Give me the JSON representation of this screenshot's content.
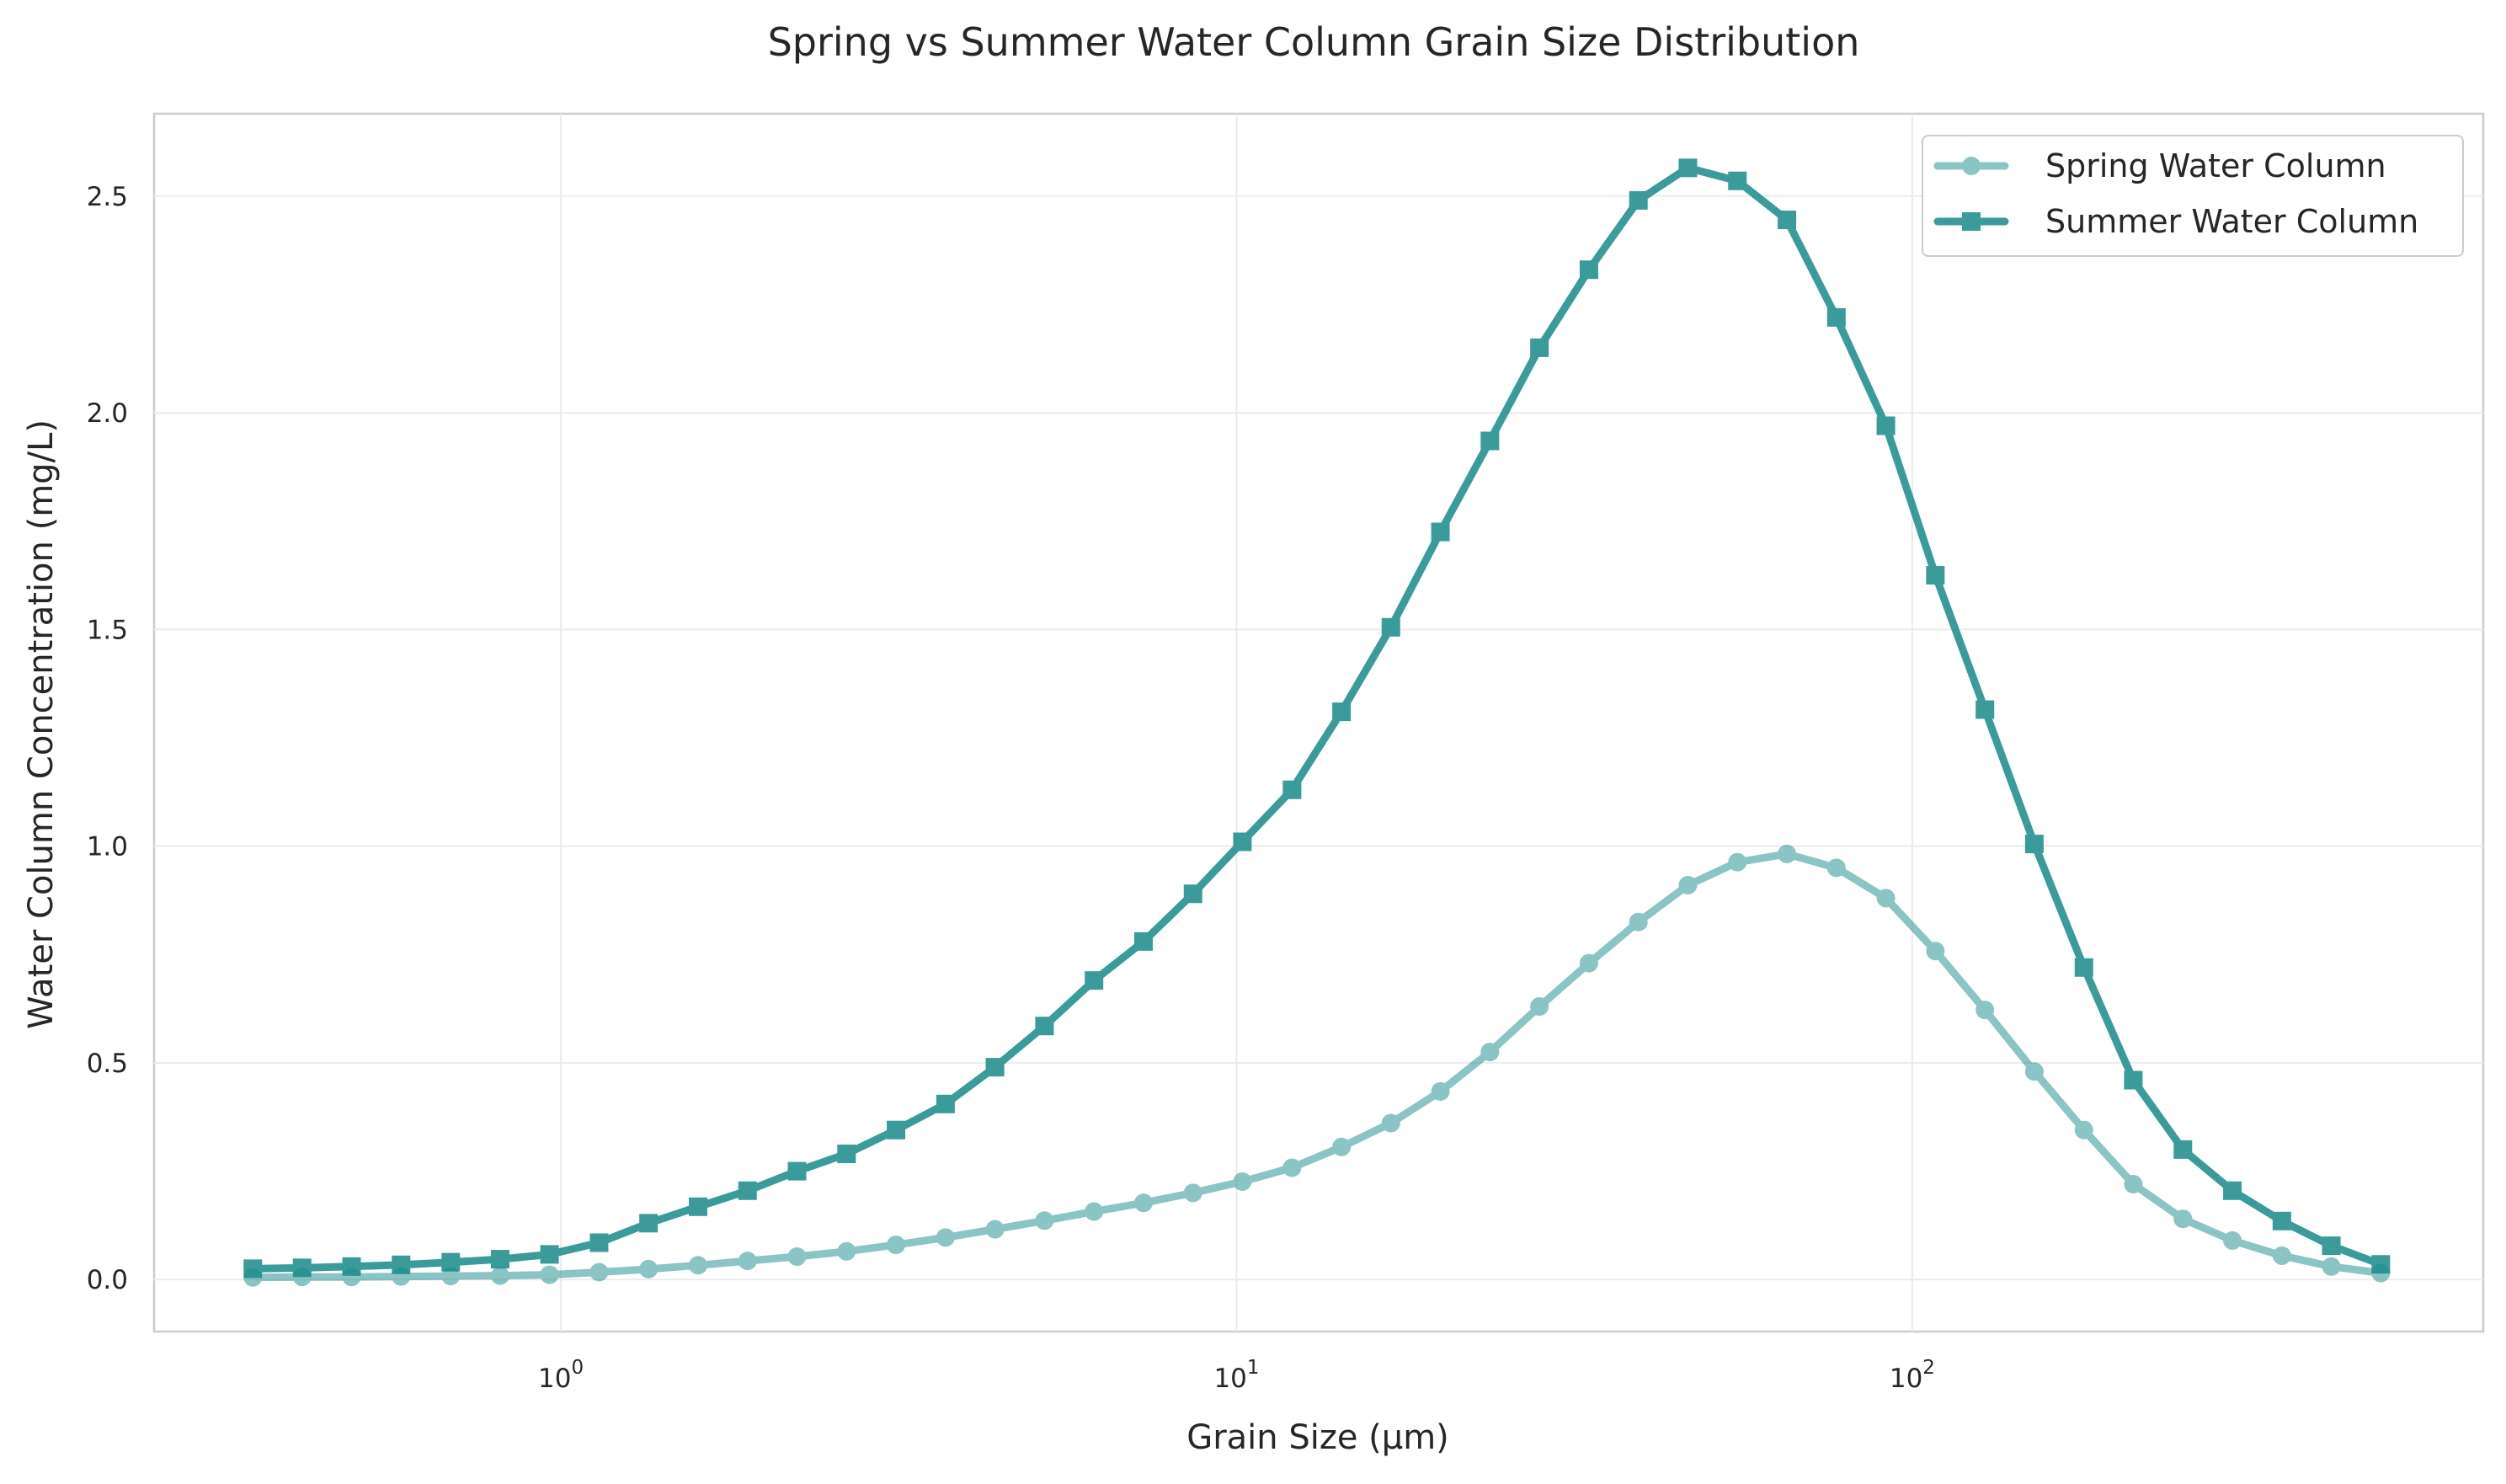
{
  "chart_data": {
    "type": "line",
    "title": "Spring vs Summer Water Column Grain Size Distribution",
    "xlabel": "Grain Size (μm)",
    "ylabel": "Water Column Concentration (mg/L)",
    "xscale": "log",
    "xlim": [
      0.25,
      700
    ],
    "ylim": [
      -0.12,
      2.69
    ],
    "x_ticks": [
      {
        "value": 1,
        "base": "10",
        "exp": "0"
      },
      {
        "value": 10,
        "base": "10",
        "exp": "1"
      },
      {
        "value": 100,
        "base": "10",
        "exp": "2"
      }
    ],
    "y_ticks": [
      {
        "value": 0.0,
        "label": "0.0"
      },
      {
        "value": 0.5,
        "label": "0.5"
      },
      {
        "value": 1.0,
        "label": "1.0"
      },
      {
        "value": 1.5,
        "label": "1.5"
      },
      {
        "value": 2.0,
        "label": "2.0"
      },
      {
        "value": 2.5,
        "label": "2.5"
      }
    ],
    "grid": true,
    "legend_position": "top-right",
    "x": [
      0.35,
      0.414,
      0.49,
      0.58,
      0.687,
      0.813,
      0.962,
      1.139,
      1.348,
      1.596,
      1.889,
      2.236,
      2.647,
      3.133,
      3.709,
      4.39,
      5.197,
      6.152,
      7.282,
      8.62,
      10.2,
      12.08,
      14.3,
      16.92,
      20.03,
      23.71,
      28.07,
      33.23,
      39.33,
      46.56,
      55.11,
      65.24,
      77.22,
      91.41,
      108.2,
      128.1,
      151.6,
      179.5,
      212.4,
      251.5,
      297.7,
      352.4,
      417.1,
      493.7
    ],
    "series": [
      {
        "name": "Spring Water Column",
        "color": "#1a8a8a",
        "opacity": 0.5,
        "marker": "circle",
        "values": [
          0.005,
          0.006,
          0.006,
          0.007,
          0.008,
          0.009,
          0.011,
          0.017,
          0.024,
          0.033,
          0.043,
          0.053,
          0.065,
          0.08,
          0.097,
          0.116,
          0.136,
          0.157,
          0.177,
          0.2,
          0.226,
          0.258,
          0.306,
          0.361,
          0.434,
          0.525,
          0.63,
          0.73,
          0.825,
          0.91,
          0.963,
          0.982,
          0.95,
          0.88,
          0.758,
          0.622,
          0.48,
          0.345,
          0.22,
          0.14,
          0.09,
          0.055,
          0.03,
          0.015
        ]
      },
      {
        "name": "Summer Water Column",
        "color": "#1a8a8a",
        "opacity": 0.85,
        "marker": "square",
        "values": [
          0.025,
          0.027,
          0.03,
          0.034,
          0.04,
          0.047,
          0.058,
          0.085,
          0.13,
          0.168,
          0.205,
          0.25,
          0.29,
          0.345,
          0.405,
          0.49,
          0.585,
          0.69,
          0.78,
          0.89,
          1.01,
          1.13,
          1.31,
          1.505,
          1.725,
          1.935,
          2.15,
          2.33,
          2.49,
          2.565,
          2.535,
          2.445,
          2.22,
          1.97,
          1.625,
          1.315,
          1.005,
          0.72,
          0.46,
          0.3,
          0.205,
          0.135,
          0.078,
          0.035
        ]
      }
    ]
  }
}
